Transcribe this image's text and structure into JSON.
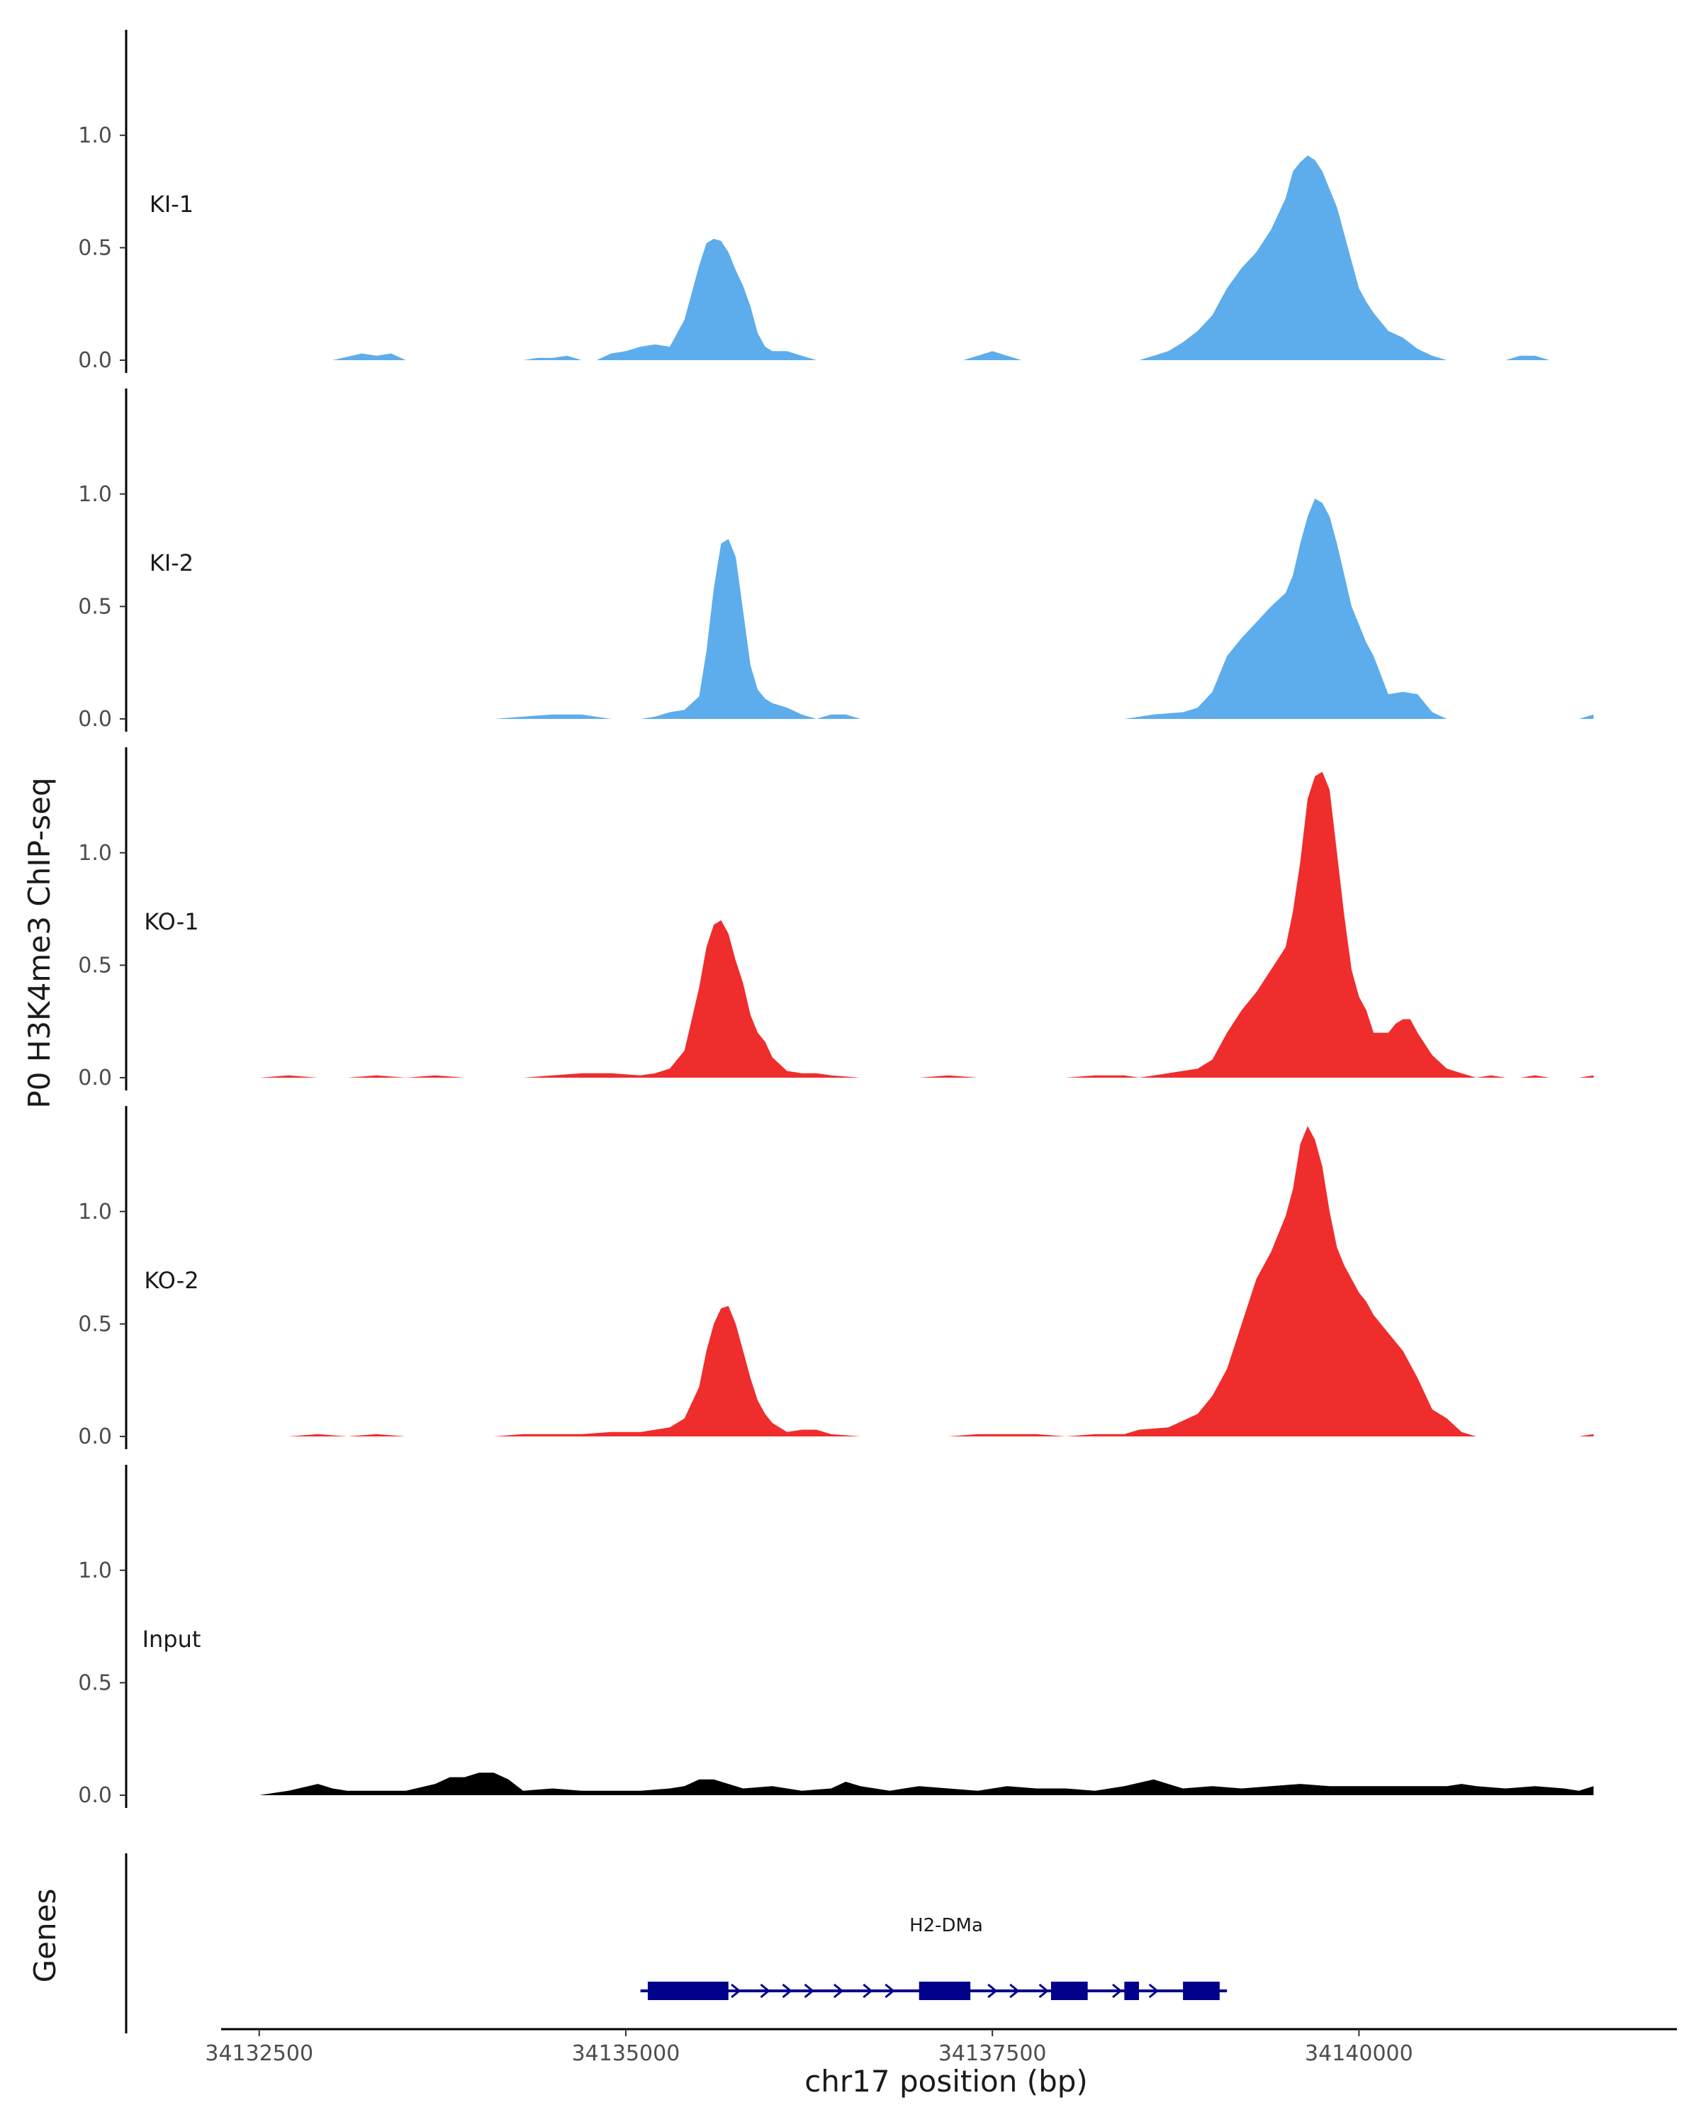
{
  "chart_data": {
    "type": "area",
    "ylabel": "P0 H3K4me3 ChIP-seq",
    "xlabel": "chr17 position (bp)",
    "ylim": [
      0,
      1.45
    ],
    "yticks": [
      0.0,
      0.5,
      1.0
    ],
    "ytick_labels": [
      "0.0",
      "0.5",
      "1.0"
    ],
    "xlim": [
      34132250,
      34142120
    ],
    "xticks": [
      34132500,
      34135000,
      34137500,
      34140000
    ],
    "xtick_labels": [
      "34132500",
      "34135000",
      "34137500",
      "34140000"
    ],
    "colors": {
      "KI": "#5DADEC",
      "KO": "#EF2D2D",
      "Input": "#000000",
      "gene": "#00008B"
    },
    "tracks": [
      {
        "name": "KI-1",
        "color": "#5DADEC",
        "x": [
          34132750,
          34133000,
          34133200,
          34133300,
          34133400,
          34133500,
          34133600,
          34133700,
          34133800,
          34133900,
          34134000,
          34134100,
          34134200,
          34134300,
          34134400,
          34134500,
          34134600,
          34134700,
          34134800,
          34134900,
          34135000,
          34135100,
          34135200,
          34135300,
          34135400,
          34135500,
          34135550,
          34135600,
          34135650,
          34135700,
          34135750,
          34135800,
          34135850,
          34135900,
          34135950,
          34136000,
          34136100,
          34136200,
          34136300,
          34136400,
          34136500,
          34136600,
          34136700,
          34136800,
          34136900,
          34137000,
          34137100,
          34137200,
          34137300,
          34137400,
          34137500,
          34137600,
          34137700,
          34137800,
          34137900,
          34138000,
          34138100,
          34138200,
          34138300,
          34138400,
          34138500,
          34138600,
          34138700,
          34138800,
          34138900,
          34139000,
          34139100,
          34139200,
          34139300,
          34139400,
          34139500,
          34139550,
          34139600,
          34139650,
          34139700,
          34139750,
          34139800,
          34139850,
          34139900,
          34139950,
          34140000,
          34140050,
          34140100,
          34140200,
          34140300,
          34140400,
          34140500,
          34140600,
          34140700,
          34140800,
          34140900,
          34141000,
          34141100,
          34141200,
          34141300,
          34141400,
          34141500,
          34141600
        ],
        "y": [
          0.0,
          0.0,
          0.03,
          0.02,
          0.03,
          0.0,
          0.0,
          0.0,
          0.0,
          0.0,
          0.0,
          0.0,
          0.0,
          0.0,
          0.01,
          0.01,
          0.02,
          0.0,
          0.0,
          0.03,
          0.04,
          0.06,
          0.07,
          0.06,
          0.18,
          0.42,
          0.52,
          0.54,
          0.53,
          0.48,
          0.4,
          0.33,
          0.24,
          0.12,
          0.06,
          0.04,
          0.04,
          0.02,
          0.0,
          0.0,
          0.0,
          0.0,
          0.0,
          0.0,
          0.0,
          0.0,
          0.0,
          0.0,
          0.0,
          0.02,
          0.04,
          0.02,
          0.0,
          0.0,
          0.0,
          0.0,
          0.0,
          0.0,
          0.0,
          0.0,
          0.0,
          0.02,
          0.04,
          0.08,
          0.13,
          0.2,
          0.32,
          0.41,
          0.48,
          0.58,
          0.72,
          0.84,
          0.88,
          0.91,
          0.89,
          0.84,
          0.76,
          0.68,
          0.56,
          0.44,
          0.32,
          0.26,
          0.21,
          0.13,
          0.1,
          0.05,
          0.02,
          0.0,
          0.0,
          0.0,
          0.0,
          0.0,
          0.02,
          0.02,
          0.0,
          0.0,
          0.0,
          0.0
        ]
      },
      {
        "name": "KI-2",
        "color": "#5DADEC",
        "x": [
          34132500,
          34132700,
          34132900,
          34133100,
          34133300,
          34133500,
          34133700,
          34133900,
          34134100,
          34134300,
          34134500,
          34134700,
          34134900,
          34135100,
          34135200,
          34135300,
          34135400,
          34135500,
          34135550,
          34135600,
          34135650,
          34135700,
          34135750,
          34135800,
          34135850,
          34135900,
          34135950,
          34136000,
          34136100,
          34136200,
          34136300,
          34136400,
          34136500,
          34136600,
          34136700,
          34136800,
          34136900,
          34137000,
          34137200,
          34137400,
          34137600,
          34137800,
          34138000,
          34138200,
          34138400,
          34138600,
          34138800,
          34138900,
          34139000,
          34139100,
          34139200,
          34139300,
          34139400,
          34139500,
          34139550,
          34139600,
          34139650,
          34139700,
          34139750,
          34139800,
          34139850,
          34139900,
          34139950,
          34140000,
          34140050,
          34140100,
          34140200,
          34140300,
          34140400,
          34140500,
          34140600,
          34140700,
          34140800,
          34140900,
          34141000,
          34141100,
          34141200,
          34141300,
          34141400,
          34141500,
          34141600
        ],
        "y": [
          0.0,
          0.0,
          0.0,
          0.0,
          0.0,
          0.0,
          0.0,
          0.0,
          0.0,
          0.01,
          0.02,
          0.02,
          0.0,
          0.0,
          0.01,
          0.03,
          0.04,
          0.1,
          0.3,
          0.58,
          0.78,
          0.8,
          0.72,
          0.48,
          0.24,
          0.13,
          0.09,
          0.07,
          0.05,
          0.02,
          0.0,
          0.02,
          0.02,
          0.0,
          0.0,
          0.0,
          0.0,
          0.0,
          0.0,
          0.0,
          0.0,
          0.0,
          0.0,
          0.0,
          0.0,
          0.02,
          0.03,
          0.05,
          0.12,
          0.28,
          0.36,
          0.43,
          0.5,
          0.56,
          0.64,
          0.78,
          0.9,
          0.98,
          0.96,
          0.9,
          0.78,
          0.64,
          0.5,
          0.42,
          0.34,
          0.28,
          0.11,
          0.12,
          0.11,
          0.03,
          0.0,
          0.0,
          0.0,
          0.0,
          0.0,
          0.0,
          0.0,
          0.0,
          0.0,
          0.0,
          0.02
        ]
      },
      {
        "name": "KO-1",
        "color": "#EF2D2D",
        "x": [
          34132500,
          34132700,
          34132900,
          34133100,
          34133300,
          34133500,
          34133700,
          34133900,
          34134100,
          34134300,
          34134500,
          34134700,
          34134900,
          34135100,
          34135200,
          34135300,
          34135400,
          34135500,
          34135550,
          34135600,
          34135650,
          34135700,
          34135750,
          34135800,
          34135850,
          34135900,
          34135950,
          34136000,
          34136100,
          34136200,
          34136300,
          34136400,
          34136600,
          34136800,
          34137000,
          34137200,
          34137400,
          34137600,
          34137800,
          34138000,
          34138200,
          34138400,
          34138500,
          34138700,
          34138900,
          34139000,
          34139100,
          34139200,
          34139300,
          34139400,
          34139500,
          34139550,
          34139600,
          34139650,
          34139700,
          34139750,
          34139800,
          34139850,
          34139900,
          34139950,
          34140000,
          34140050,
          34140100,
          34140150,
          34140200,
          34140250,
          34140300,
          34140350,
          34140400,
          34140500,
          34140600,
          34140700,
          34140800,
          34140900,
          34141000,
          34141100,
          34141200,
          34141300,
          34141400,
          34141500,
          34141600
        ],
        "y": [
          0.0,
          0.01,
          0.0,
          0.0,
          0.01,
          0.0,
          0.01,
          0.0,
          0.0,
          0.0,
          0.01,
          0.02,
          0.02,
          0.01,
          0.02,
          0.04,
          0.12,
          0.4,
          0.58,
          0.68,
          0.7,
          0.64,
          0.52,
          0.42,
          0.28,
          0.2,
          0.16,
          0.09,
          0.03,
          0.02,
          0.02,
          0.01,
          0.0,
          0.0,
          0.0,
          0.01,
          0.0,
          0.0,
          0.0,
          0.0,
          0.01,
          0.01,
          0.0,
          0.02,
          0.04,
          0.08,
          0.2,
          0.3,
          0.38,
          0.48,
          0.58,
          0.74,
          0.96,
          1.24,
          1.34,
          1.36,
          1.28,
          1.0,
          0.72,
          0.48,
          0.36,
          0.3,
          0.2,
          0.2,
          0.2,
          0.24,
          0.26,
          0.26,
          0.2,
          0.1,
          0.04,
          0.02,
          0.0,
          0.01,
          0.0,
          0.0,
          0.01,
          0.0,
          0.0,
          0.0,
          0.01
        ]
      },
      {
        "name": "KO-2",
        "color": "#EF2D2D",
        "x": [
          34132500,
          34132700,
          34132900,
          34133100,
          34133300,
          34133500,
          34133700,
          34133900,
          34134100,
          34134300,
          34134500,
          34134700,
          34134900,
          34135100,
          34135200,
          34135300,
          34135400,
          34135500,
          34135550,
          34135600,
          34135650,
          34135700,
          34135750,
          34135800,
          34135850,
          34135900,
          34135950,
          34136000,
          34136100,
          34136200,
          34136300,
          34136400,
          34136600,
          34136800,
          34137000,
          34137200,
          34137400,
          34137600,
          34137800,
          34138000,
          34138200,
          34138400,
          34138500,
          34138700,
          34138900,
          34139000,
          34139100,
          34139200,
          34139300,
          34139400,
          34139500,
          34139550,
          34139600,
          34139650,
          34139700,
          34139750,
          34139800,
          34139850,
          34139900,
          34139950,
          34140000,
          34140050,
          34140100,
          34140200,
          34140300,
          34140400,
          34140500,
          34140600,
          34140700,
          34140800,
          34140900,
          34141000,
          34141100,
          34141200,
          34141300,
          34141400,
          34141500,
          34141600
        ],
        "y": [
          0.0,
          0.0,
          0.01,
          0.0,
          0.01,
          0.0,
          0.0,
          0.0,
          0.0,
          0.01,
          0.01,
          0.01,
          0.02,
          0.02,
          0.03,
          0.04,
          0.08,
          0.22,
          0.38,
          0.5,
          0.57,
          0.58,
          0.5,
          0.38,
          0.26,
          0.16,
          0.1,
          0.06,
          0.02,
          0.03,
          0.03,
          0.01,
          0.0,
          0.0,
          0.0,
          0.0,
          0.01,
          0.01,
          0.01,
          0.0,
          0.01,
          0.01,
          0.03,
          0.04,
          0.1,
          0.18,
          0.3,
          0.5,
          0.7,
          0.82,
          0.98,
          1.1,
          1.3,
          1.38,
          1.32,
          1.2,
          1.0,
          0.84,
          0.76,
          0.7,
          0.64,
          0.6,
          0.54,
          0.46,
          0.38,
          0.26,
          0.12,
          0.08,
          0.02,
          0.0,
          0.0,
          0.0,
          0.0,
          0.0,
          0.0,
          0.0,
          0.0,
          0.01
        ]
      },
      {
        "name": "Input",
        "color": "#000000",
        "x": [
          34132500,
          34132700,
          34132900,
          34133000,
          34133100,
          34133300,
          34133500,
          34133700,
          34133800,
          34133900,
          34134000,
          34134100,
          34134200,
          34134300,
          34134500,
          34134700,
          34134900,
          34135100,
          34135300,
          34135400,
          34135500,
          34135600,
          34135800,
          34136000,
          34136200,
          34136400,
          34136500,
          34136600,
          34136800,
          34137000,
          34137200,
          34137400,
          34137600,
          34137800,
          34138000,
          34138200,
          34138400,
          34138600,
          34138800,
          34139000,
          34139200,
          34139400,
          34139600,
          34139800,
          34140000,
          34140200,
          34140400,
          34140600,
          34140700,
          34140800,
          34141000,
          34141200,
          34141400,
          34141500,
          34141600
        ],
        "y": [
          0.0,
          0.02,
          0.05,
          0.03,
          0.02,
          0.02,
          0.02,
          0.05,
          0.08,
          0.08,
          0.1,
          0.1,
          0.07,
          0.02,
          0.03,
          0.02,
          0.02,
          0.02,
          0.03,
          0.04,
          0.07,
          0.07,
          0.03,
          0.04,
          0.02,
          0.03,
          0.06,
          0.04,
          0.02,
          0.04,
          0.03,
          0.02,
          0.04,
          0.03,
          0.03,
          0.02,
          0.04,
          0.07,
          0.03,
          0.04,
          0.03,
          0.04,
          0.05,
          0.04,
          0.04,
          0.04,
          0.04,
          0.04,
          0.05,
          0.04,
          0.03,
          0.04,
          0.03,
          0.02,
          0.04
        ]
      }
    ],
    "genes": {
      "label": "Genes",
      "name": "H2-DMa",
      "line": [
        34135100,
        34139100
      ],
      "exons": [
        [
          34135150,
          34135700
        ],
        [
          34137000,
          34137350
        ],
        [
          34137900,
          34138150
        ],
        [
          34138400,
          34138500
        ],
        [
          34138800,
          34139050
        ]
      ],
      "arrows": [
        34135750,
        34135950,
        34136100,
        34136250,
        34136450,
        34136650,
        34136800,
        34137500,
        34137650,
        34137850,
        34138350,
        34138600
      ],
      "direction": "plus"
    }
  }
}
